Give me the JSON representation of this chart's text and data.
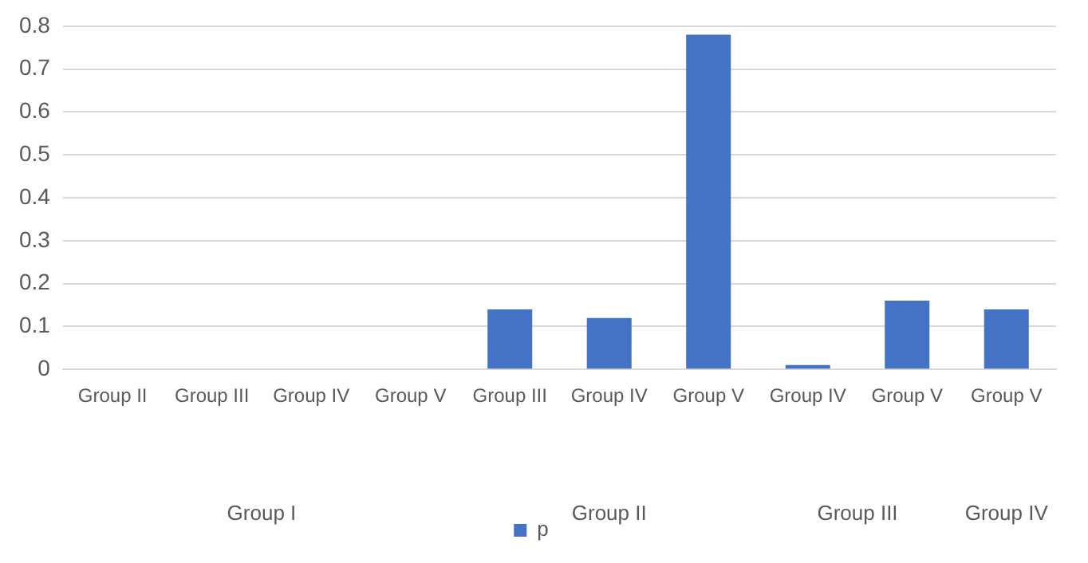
{
  "chart_data": {
    "type": "bar",
    "categories": [
      "Group II",
      "Group III",
      "Group IV",
      "Group V",
      "Group III",
      "Group IV",
      "Group V",
      "Group IV",
      "Group V",
      "Group V"
    ],
    "series": [
      {
        "name": "p",
        "color": "#4472c4",
        "values": [
          0,
          0,
          0,
          0,
          0.14,
          0.12,
          0.78,
          0.01,
          0.16,
          0.14
        ]
      }
    ],
    "ylim": [
      0,
      0.8
    ],
    "yticks": [
      0,
      0.1,
      0.2,
      0.3,
      0.4,
      0.5,
      0.6,
      0.7,
      0.8
    ],
    "grid": "y",
    "legend": "bottom",
    "annotations": [
      "Group I",
      "Group II",
      "Group III",
      "Group IV"
    ]
  }
}
